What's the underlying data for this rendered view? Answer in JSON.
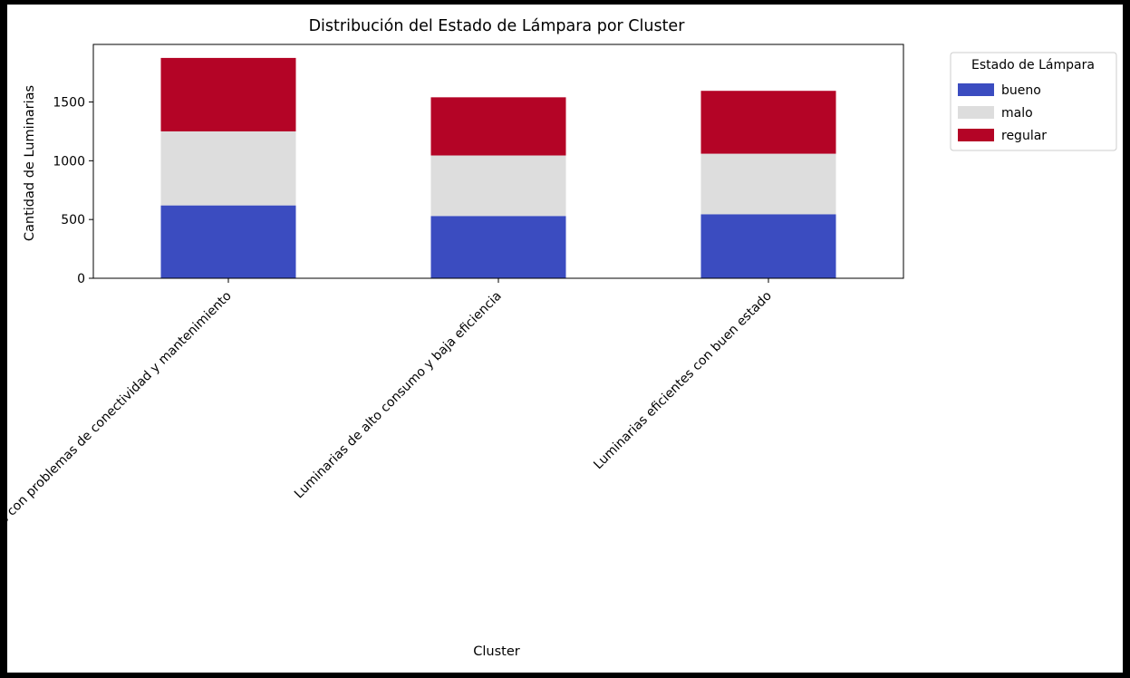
{
  "chart_data": {
    "type": "bar",
    "stacked": true,
    "title": "Distribución del Estado de Lámpara por Cluster",
    "xlabel": "Cluster",
    "ylabel": "Cantidad de Luminarias",
    "ylim": [
      0,
      1990
    ],
    "yticks": [
      0,
      500,
      1000,
      1500
    ],
    "categories": [
      "Luminarias con problemas de conectividad y mantenimiento",
      "Luminarias de alto consumo y baja eficiencia",
      "Luminarias eficientes con buen estado"
    ],
    "series": [
      {
        "name": "bueno",
        "color": "#3b4cc0",
        "values": [
          620,
          530,
          545
        ]
      },
      {
        "name": "malo",
        "color": "#dddddd",
        "values": [
          630,
          515,
          515
        ]
      },
      {
        "name": "regular",
        "color": "#b40426",
        "values": [
          625,
          495,
          535
        ]
      }
    ],
    "legend": {
      "title": "Estado de Lámpara",
      "position": "outside-right"
    },
    "grid": false
  }
}
